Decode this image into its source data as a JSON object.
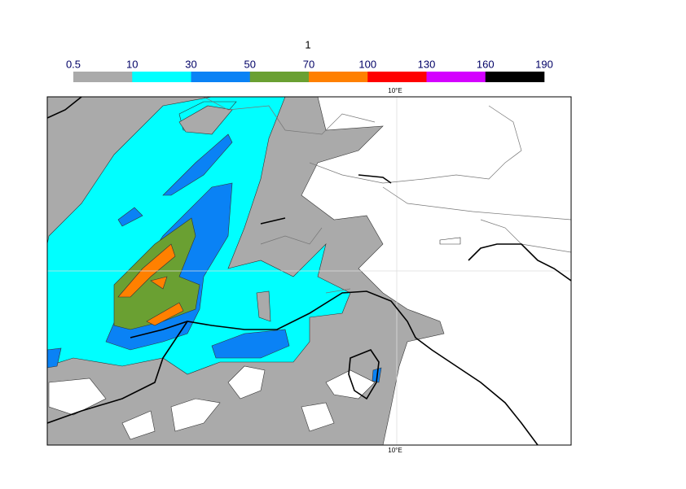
{
  "title": "1",
  "legend": {
    "levels": [
      0.5,
      10,
      30,
      50,
      70,
      100,
      130,
      160,
      190
    ],
    "colors": [
      "#aaaaaa",
      "#00ffff",
      "#0a82f5",
      "#6aa032",
      "#ff8000",
      "#ff0000",
      "#d400ff",
      "#000000"
    ]
  },
  "map": {
    "top_label": "10°E",
    "bottom_label": "10°E"
  }
}
